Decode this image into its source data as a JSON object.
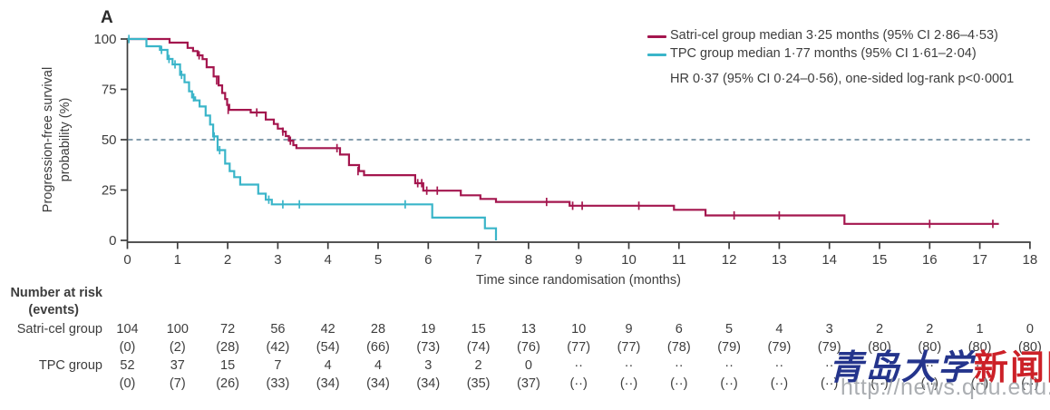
{
  "panel_label": "A",
  "colors": {
    "satri": "#a4164e",
    "tpc": "#3ab5c9",
    "median_ref_line": "#5d7e92",
    "axis": "#3d3d3d",
    "watermark_blue": "#24348c",
    "watermark_red": "#cc2128",
    "watermark_url_gray": "#8f9499"
  },
  "legend": {
    "satri_label": "Satri-cel group median 3·25 months (95% CI 2·86–4·53)",
    "tpc_label": "TPC group median 1·77 months (95% CI 1·61–2·04)",
    "hr_line": "HR 0·37 (95% CI 0·24–0·56), one-sided log-rank p<0·0001"
  },
  "axes": {
    "x_label": "Time since randomisation (months)",
    "y_label_line1": "Progression-free survival",
    "y_label_line2": "probability (%)",
    "x_ticks": [
      0,
      1,
      2,
      3,
      4,
      5,
      6,
      7,
      8,
      9,
      10,
      11,
      12,
      13,
      14,
      15,
      16,
      17,
      18
    ],
    "y_ticks": [
      0,
      25,
      50,
      75,
      100
    ],
    "median_ref_y": 50
  },
  "chart_data": {
    "type": "line",
    "subtype": "kaplan-meier-step",
    "title": "Progression-free survival",
    "xlabel": "Time since randomisation (months)",
    "ylabel": "Progression-free survival probability (%)",
    "xlim": [
      0,
      18
    ],
    "ylim": [
      0,
      100
    ],
    "grid": false,
    "reference_line_y": 50,
    "series": [
      {
        "name": "Satri-cel group",
        "color": "#a4164e",
        "median_months": "3·25",
        "steps": [
          [
            0,
            100
          ],
          [
            0.84,
            98.2
          ],
          [
            1.2,
            95.6
          ],
          [
            1.31,
            94
          ],
          [
            1.4,
            91.9
          ],
          [
            1.5,
            90
          ],
          [
            1.58,
            86
          ],
          [
            1.72,
            81.4
          ],
          [
            1.82,
            77
          ],
          [
            1.89,
            73.2
          ],
          [
            1.95,
            70.2
          ],
          [
            1.99,
            67.3
          ],
          [
            2.03,
            64.8
          ],
          [
            2.46,
            63.5
          ],
          [
            2.76,
            60
          ],
          [
            2.92,
            57.8
          ],
          [
            3.0,
            55.5
          ],
          [
            3.1,
            54
          ],
          [
            3.16,
            51.8
          ],
          [
            3.22,
            49.5
          ],
          [
            3.31,
            47.3
          ],
          [
            3.37,
            45.8
          ],
          [
            4.24,
            42.6
          ],
          [
            4.42,
            37.4
          ],
          [
            4.62,
            34.4
          ],
          [
            4.72,
            32.4
          ],
          [
            5.74,
            28.4
          ],
          [
            5.9,
            24.7
          ],
          [
            6.65,
            22.4
          ],
          [
            7.04,
            20.6
          ],
          [
            7.35,
            19.1
          ],
          [
            8.82,
            17.2
          ],
          [
            10.9,
            15.2
          ],
          [
            11.53,
            12.4
          ],
          [
            14.3,
            8.2
          ],
          [
            17.38,
            8.2
          ]
        ],
        "censors": [
          [
            1.43,
            91.9
          ],
          [
            1.78,
            79.4
          ],
          [
            2.01,
            64.8
          ],
          [
            2.58,
            63.5
          ],
          [
            3.1,
            54
          ],
          [
            3.25,
            49.5
          ],
          [
            4.18,
            45.8
          ],
          [
            4.6,
            34.4
          ],
          [
            5.79,
            28.4
          ],
          [
            5.87,
            28.4
          ],
          [
            5.97,
            24.7
          ],
          [
            6.18,
            24.7
          ],
          [
            8.36,
            19.1
          ],
          [
            8.88,
            17.2
          ],
          [
            9.07,
            17.2
          ],
          [
            10.2,
            17.2
          ],
          [
            12.1,
            12.4
          ],
          [
            13.0,
            12.4
          ],
          [
            16.0,
            8.2
          ],
          [
            17.26,
            8.2
          ]
        ]
      },
      {
        "name": "TPC group",
        "color": "#3ab5c9",
        "median_months": "1·77",
        "steps": [
          [
            0,
            100
          ],
          [
            0.38,
            96.4
          ],
          [
            0.65,
            94.6
          ],
          [
            0.8,
            90.1
          ],
          [
            0.9,
            87.4
          ],
          [
            1.05,
            82.2
          ],
          [
            1.14,
            78.5
          ],
          [
            1.23,
            74
          ],
          [
            1.29,
            71
          ],
          [
            1.35,
            69.5
          ],
          [
            1.44,
            66.5
          ],
          [
            1.56,
            62
          ],
          [
            1.65,
            57.5
          ],
          [
            1.71,
            51.6
          ],
          [
            1.8,
            44.8
          ],
          [
            1.95,
            38.1
          ],
          [
            2.04,
            34.4
          ],
          [
            2.13,
            31.4
          ],
          [
            2.25,
            27.7
          ],
          [
            2.61,
            23.2
          ],
          [
            2.76,
            20.2
          ],
          [
            2.88,
            17.9
          ],
          [
            6.08,
            11.3
          ],
          [
            7.13,
            6
          ],
          [
            7.35,
            0
          ]
        ],
        "censors": [
          [
            0.03,
            100
          ],
          [
            0.68,
            94.6
          ],
          [
            0.83,
            90.1
          ],
          [
            0.95,
            87.4
          ],
          [
            1.08,
            82.2
          ],
          [
            1.32,
            71
          ],
          [
            1.73,
            51.6
          ],
          [
            1.84,
            44.8
          ],
          [
            2.82,
            20.2
          ],
          [
            3.1,
            17.9
          ],
          [
            3.43,
            17.9
          ],
          [
            5.54,
            17.9
          ]
        ]
      }
    ]
  },
  "risk_table": {
    "header_line1": "Number at risk",
    "header_line2": "(events)",
    "rows": [
      {
        "label": "Satri-cel group",
        "at_risk": [
          "104",
          "100",
          "72",
          "56",
          "42",
          "28",
          "19",
          "15",
          "13",
          "10",
          "9",
          "6",
          "5",
          "4",
          "3",
          "2",
          "2",
          "1",
          "0"
        ],
        "events": [
          "(0)",
          "(2)",
          "(28)",
          "(42)",
          "(54)",
          "(66)",
          "(73)",
          "(74)",
          "(76)",
          "(77)",
          "(77)",
          "(78)",
          "(79)",
          "(79)",
          "(79)",
          "(80)",
          "(80)",
          "(80)",
          "(80)"
        ]
      },
      {
        "label": "TPC group",
        "at_risk": [
          "52",
          "37",
          "15",
          "7",
          "4",
          "4",
          "3",
          "2",
          "0",
          "··",
          "··",
          "··",
          "··",
          "··",
          "··",
          "··",
          "··",
          "··",
          "··"
        ],
        "events": [
          "(0)",
          "(7)",
          "(26)",
          "(33)",
          "(34)",
          "(34)",
          "(34)",
          "(35)",
          "(37)",
          "(··)",
          "(··)",
          "(··)",
          "(··)",
          "(··)",
          "(··)",
          "(··)",
          "(··)",
          "(··)",
          "(··)"
        ]
      }
    ]
  },
  "watermark": {
    "cn_blue": "青岛大学",
    "cn_red": "新闻网",
    "url": "http://news.qdu.edu.cn"
  }
}
